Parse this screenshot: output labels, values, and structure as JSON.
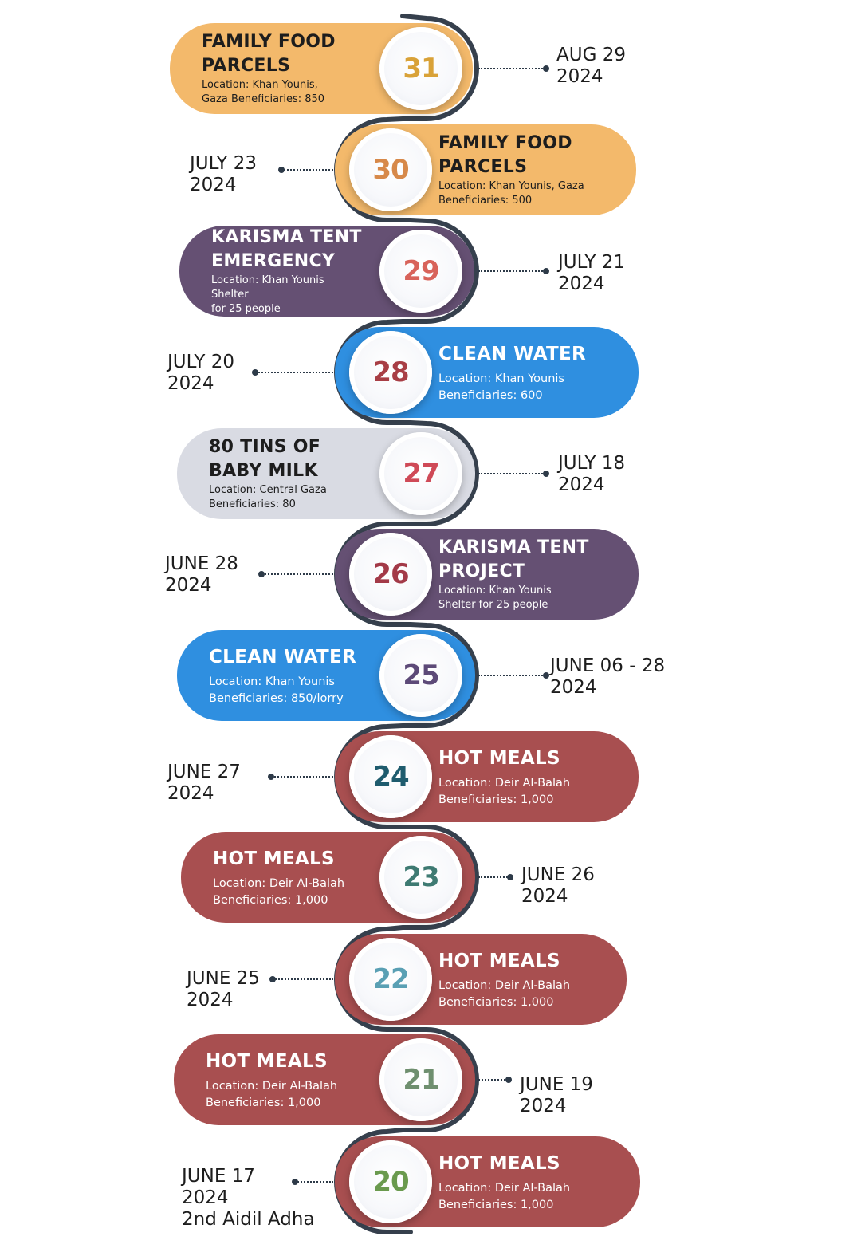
{
  "timeline": {
    "items": [
      {
        "num": "31",
        "title": "FAMILY FOOD PARCELS",
        "info": [
          "Location: Khan Younis,",
          "Gaza Beneficiaries: 850"
        ],
        "date": [
          "AUG 29",
          "2024"
        ],
        "color": "#f3b96b",
        "num_color": "#d9a238",
        "side": "left"
      },
      {
        "num": "30",
        "title": "FAMILY FOOD PARCELS",
        "info": [
          "Location: Khan Younis, Gaza",
          "Beneficiaries: 500"
        ],
        "date": [
          "JULY 23",
          "2024"
        ],
        "color": "#f3b96b",
        "num_color": "#d7894a",
        "side": "right"
      },
      {
        "num": "29",
        "title": "KARISMA TENT EMERGENCY",
        "info": [
          "Location: Khan Younis Shelter",
          "for 25 people"
        ],
        "date": [
          "JULY 21",
          "2024"
        ],
        "color": "#655073",
        "num_color": "#d8635a",
        "side": "left"
      },
      {
        "num": "28",
        "title": "CLEAN WATER",
        "info": [
          "Location: Khan Younis",
          "Beneficiaries: 600"
        ],
        "date": [
          "JULY 20",
          "2024"
        ],
        "color": "#2f8fe0",
        "num_color": "#a83e45",
        "side": "right"
      },
      {
        "num": "27",
        "title": "80 TINS OF BABY MILK",
        "info": [
          "Location: Central Gaza",
          "Beneficiaries: 80"
        ],
        "date": [
          "JULY 18",
          "2024"
        ],
        "color": "#d9dbe3",
        "num_color": "#cf4a57",
        "side": "left"
      },
      {
        "num": "26",
        "title": "KARISMA TENT PROJECT",
        "info": [
          "Location: Khan Younis",
          "Shelter for 25 people"
        ],
        "date": [
          "JUNE 28",
          "2024"
        ],
        "color": "#655073",
        "num_color": "#a33a48",
        "side": "right"
      },
      {
        "num": "25",
        "title": "CLEAN WATER",
        "info": [
          "Location: Khan Younis",
          "Beneficiaries: 850/lorry"
        ],
        "date": [
          "JUNE 06 - 28",
          "2024"
        ],
        "color": "#2f8fe0",
        "num_color": "#5d4a78",
        "side": "left"
      },
      {
        "num": "24",
        "title": "HOT MEALS",
        "info": [
          "Location: Deir Al-Balah",
          "Beneficiaries: 1,000"
        ],
        "date": [
          "JUNE 27",
          "2024"
        ],
        "color": "#a84f50",
        "num_color": "#1f5c6e",
        "side": "right"
      },
      {
        "num": "23",
        "title": "HOT MEALS",
        "info": [
          "Location: Deir Al-Balah",
          "Beneficiaries: 1,000"
        ],
        "date": [
          "JUNE 26",
          "2024"
        ],
        "color": "#a84f50",
        "num_color": "#3e7a72",
        "side": "left"
      },
      {
        "num": "22",
        "title": "HOT MEALS",
        "info": [
          "Location: Deir Al-Balah",
          "Beneficiaries: 1,000"
        ],
        "date": [
          "JUNE 25",
          "2024"
        ],
        "color": "#a84f50",
        "num_color": "#5aa0b4",
        "side": "right"
      },
      {
        "num": "21",
        "title": "HOT MEALS",
        "info": [
          "Location: Deir Al-Balah",
          "Beneficiaries: 1,000"
        ],
        "date": [
          "JUNE 19",
          "2024"
        ],
        "color": "#a84f50",
        "num_color": "#6f8f6f",
        "side": "left"
      },
      {
        "num": "20",
        "title": "HOT MEALS",
        "info": [
          "Location: Deir Al-Balah",
          "Beneficiaries: 1,000"
        ],
        "date": [
          "JUNE 17",
          "2024",
          "2nd Aidil Adha"
        ],
        "color": "#a84f50",
        "num_color": "#6a9a4e",
        "side": "right"
      }
    ]
  }
}
